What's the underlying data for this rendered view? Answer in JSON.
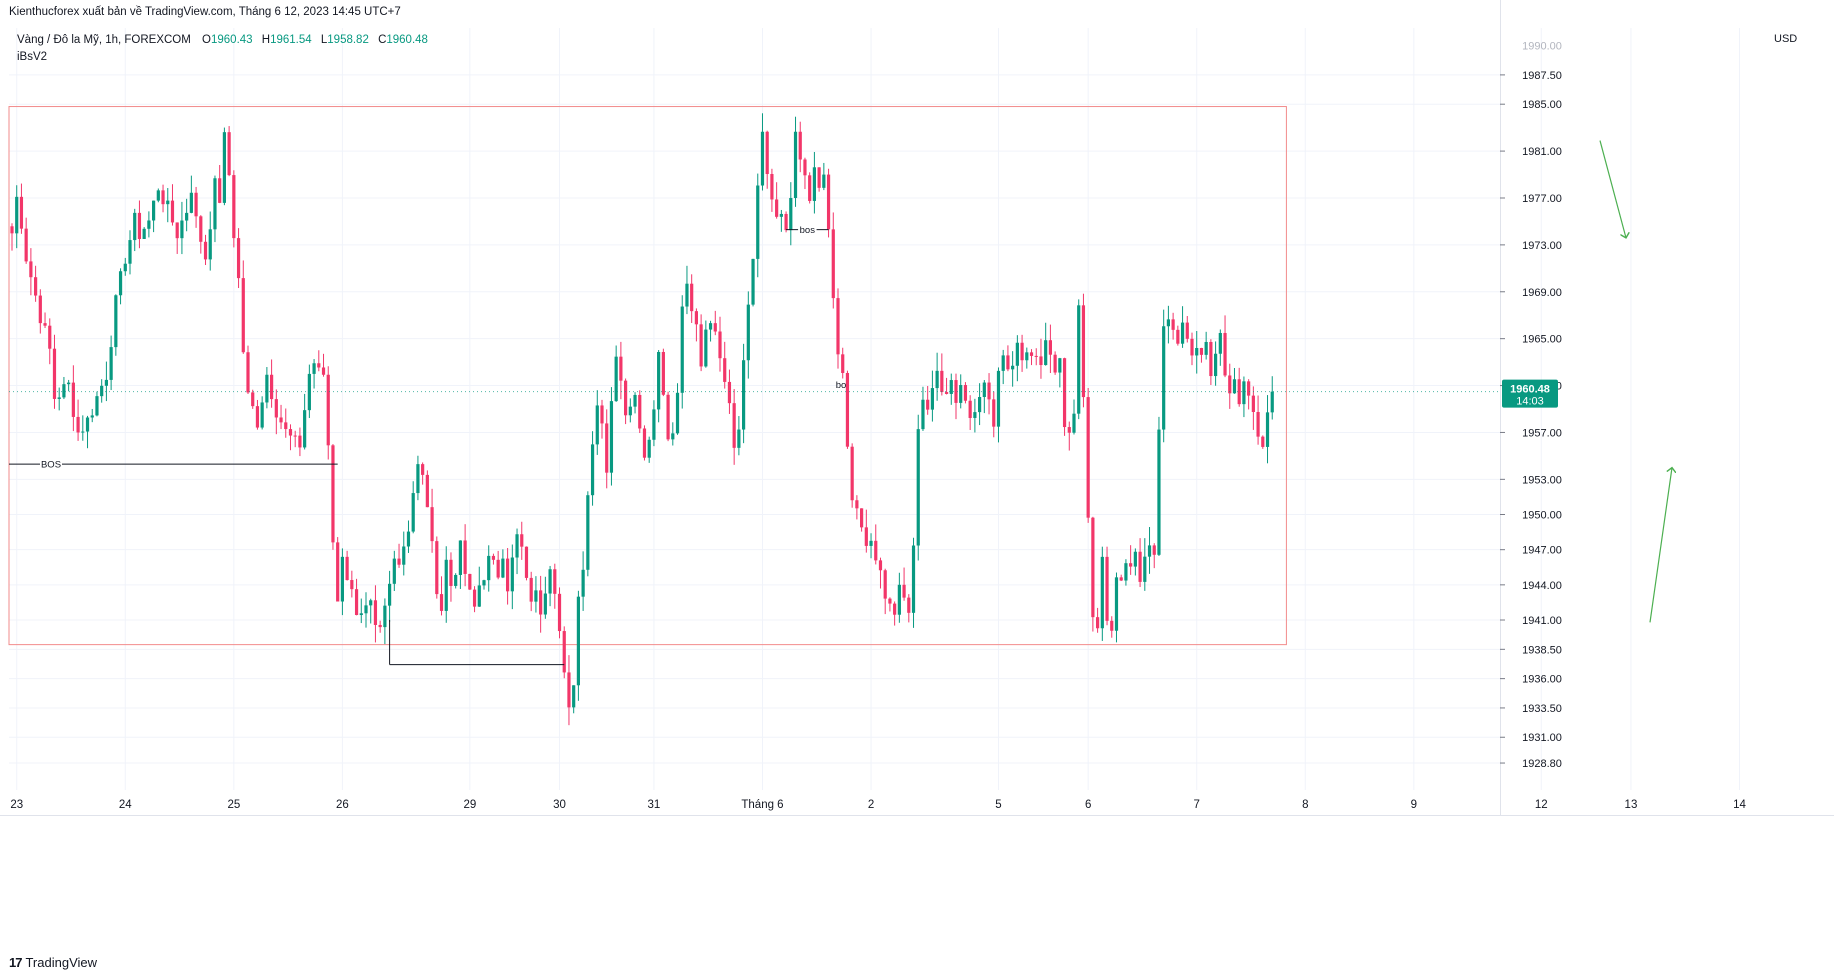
{
  "header": {
    "publish_text": "Kienthucforex xuất bản về TradingView.com, Tháng 6 12, 2023 14:45 UTC+7",
    "symbol_text": "Vàng / Đô la Mỹ, 1h, FOREXCOM",
    "ohlc": {
      "o_key": "O",
      "o": "1960.43",
      "h_key": "H",
      "h": "1961.54",
      "l_key": "L",
      "l": "1958.82",
      "c_key": "C",
      "c": "1960.48"
    },
    "indicator": "iBsV2"
  },
  "price_axis": {
    "currency": "USD",
    "top_partial_label": "1990.00",
    "current_price": "1960.48",
    "countdown": "14:03"
  },
  "footer": {
    "logo_text": "TradingView"
  },
  "colors": {
    "up": "#089981",
    "down": "#f23669",
    "zone": "#f28b8b",
    "arrow": "#4caf50",
    "grid": "#f0f3fa"
  },
  "chart_data": {
    "type": "candlestick",
    "title": "",
    "y_range": [
      1926.5,
      1991.5
    ],
    "y_ticks": [
      1928.8,
      1931.0,
      1933.5,
      1936.0,
      1938.5,
      1941.0,
      1944.0,
      1947.0,
      1950.0,
      1953.0,
      1957.0,
      1961.0,
      1965.0,
      1969.0,
      1973.0,
      1977.0,
      1981.0,
      1985.0,
      1987.5
    ],
    "y_tick_labels": [
      "1928.80",
      "1931.00",
      "1933.50",
      "1936.00",
      "1938.50",
      "1941.00",
      "1944.00",
      "1947.00",
      "1950.00",
      "1953.00",
      "1957.00",
      "1961.00",
      "1965.00",
      "1969.00",
      "1973.00",
      "1977.00",
      "1981.00",
      "1985.00",
      "1987.50"
    ],
    "x_labels": [
      {
        "label": "23",
        "bar": 1
      },
      {
        "label": "24",
        "bar": 24
      },
      {
        "label": "25",
        "bar": 47
      },
      {
        "label": "26",
        "bar": 70
      },
      {
        "label": "29",
        "bar": 97
      },
      {
        "label": "30",
        "bar": 116
      },
      {
        "label": "31",
        "bar": 136
      },
      {
        "label": "Tháng 6",
        "bar": 159
      },
      {
        "label": "2",
        "bar": 182
      },
      {
        "label": "5",
        "bar": 209
      },
      {
        "label": "6",
        "bar": 228
      },
      {
        "label": "7",
        "bar": 251
      },
      {
        "label": "8",
        "bar": 274
      },
      {
        "label": "9",
        "bar": 297
      },
      {
        "label": "12",
        "bar": 324
      },
      {
        "label": "13",
        "bar": 343
      },
      {
        "label": "14",
        "bar": 366
      }
    ],
    "key_points": [
      [
        0,
        1974
      ],
      [
        1,
        1977
      ],
      [
        2,
        1975
      ],
      [
        3,
        1972
      ],
      [
        6,
        1967
      ],
      [
        8,
        1964
      ],
      [
        9,
        1960
      ],
      [
        12,
        1961
      ],
      [
        14,
        1957
      ],
      [
        16,
        1958
      ],
      [
        18,
        1960
      ],
      [
        20,
        1962
      ],
      [
        22,
        1968
      ],
      [
        24,
        1972
      ],
      [
        26,
        1975
      ],
      [
        27,
        1974
      ],
      [
        29,
        1975
      ],
      [
        31,
        1978
      ],
      [
        33,
        1976
      ],
      [
        35,
        1974
      ],
      [
        37,
        1976
      ],
      [
        38,
        1978
      ],
      [
        39,
        1975
      ],
      [
        41,
        1972
      ],
      [
        42,
        1975
      ],
      [
        43,
        1978
      ],
      [
        44,
        1977
      ],
      [
        45,
        1982
      ],
      [
        46,
        1979
      ],
      [
        47,
        1974
      ],
      [
        48,
        1970
      ],
      [
        49,
        1964
      ],
      [
        50,
        1960
      ],
      [
        52,
        1958
      ],
      [
        54,
        1962
      ],
      [
        56,
        1959
      ],
      [
        58,
        1957
      ],
      [
        60,
        1956
      ],
      [
        61,
        1956
      ],
      [
        62,
        1959
      ],
      [
        63,
        1962
      ],
      [
        64,
        1963
      ],
      [
        65,
        1962
      ],
      [
        66,
        1962
      ],
      [
        67,
        1956
      ],
      [
        68,
        1948
      ],
      [
        69,
        1943
      ],
      [
        70,
        1946
      ],
      [
        72,
        1944
      ],
      [
        73,
        1941
      ],
      [
        74,
        1941
      ],
      [
        76,
        1942
      ],
      [
        77,
        1940
      ],
      [
        78,
        1940
      ],
      [
        79,
        1942
      ],
      [
        80,
        1944
      ],
      [
        81,
        1947
      ],
      [
        82,
        1946
      ],
      [
        84,
        1949
      ],
      [
        85,
        1952
      ],
      [
        86,
        1954
      ],
      [
        87,
        1953
      ],
      [
        88,
        1951
      ],
      [
        89,
        1947
      ],
      [
        90,
        1944
      ],
      [
        91,
        1942
      ],
      [
        92,
        1946
      ],
      [
        93,
        1944
      ],
      [
        95,
        1947
      ],
      [
        97,
        1943
      ],
      [
        98,
        1942
      ],
      [
        99,
        1944
      ],
      [
        101,
        1946
      ],
      [
        103,
        1945
      ],
      [
        104,
        1947
      ],
      [
        105,
        1944
      ],
      [
        106,
        1946
      ],
      [
        107,
        1948
      ],
      [
        108,
        1947
      ],
      [
        109,
        1944
      ],
      [
        110,
        1943
      ],
      [
        111,
        1943
      ],
      [
        112,
        1942
      ],
      [
        113,
        1944
      ],
      [
        114,
        1946
      ],
      [
        115,
        1944
      ],
      [
        116,
        1940
      ],
      [
        117,
        1936
      ],
      [
        118,
        1933
      ],
      [
        119,
        1936
      ],
      [
        120,
        1943
      ],
      [
        121,
        1946
      ],
      [
        122,
        1952
      ],
      [
        123,
        1956
      ],
      [
        124,
        1960
      ],
      [
        125,
        1958
      ],
      [
        126,
        1954
      ],
      [
        127,
        1960
      ],
      [
        128,
        1963
      ],
      [
        129,
        1962
      ],
      [
        130,
        1959
      ],
      [
        131,
        1960
      ],
      [
        132,
        1960
      ],
      [
        133,
        1958
      ],
      [
        134,
        1955
      ],
      [
        135,
        1957
      ],
      [
        136,
        1959
      ],
      [
        137,
        1964
      ],
      [
        138,
        1961
      ],
      [
        139,
        1956
      ],
      [
        140,
        1957
      ],
      [
        141,
        1960
      ],
      [
        142,
        1968
      ],
      [
        143,
        1969
      ],
      [
        144,
        1967
      ],
      [
        145,
        1966
      ],
      [
        146,
        1963
      ],
      [
        147,
        1966
      ],
      [
        148,
        1967
      ],
      [
        149,
        1965
      ],
      [
        150,
        1964
      ],
      [
        151,
        1962
      ],
      [
        152,
        1960
      ],
      [
        153,
        1956
      ],
      [
        154,
        1958
      ],
      [
        155,
        1963
      ],
      [
        156,
        1968
      ],
      [
        157,
        1972
      ],
      [
        158,
        1978
      ],
      [
        159,
        1982
      ],
      [
        160,
        1979
      ],
      [
        161,
        1977
      ],
      [
        162,
        1976
      ],
      [
        163,
        1975
      ],
      [
        164,
        1974
      ],
      [
        165,
        1977
      ],
      [
        166,
        1982
      ],
      [
        167,
        1980
      ],
      [
        168,
        1979
      ],
      [
        169,
        1976
      ],
      [
        170,
        1979
      ],
      [
        171,
        1978
      ],
      [
        172,
        1979
      ],
      [
        173,
        1974
      ],
      [
        174,
        1968
      ],
      [
        175,
        1963
      ],
      [
        176,
        1962
      ],
      [
        177,
        1955
      ],
      [
        178,
        1951
      ],
      [
        179,
        1950
      ],
      [
        180,
        1949
      ],
      [
        181,
        1948
      ],
      [
        182,
        1947
      ],
      [
        183,
        1946
      ],
      [
        184,
        1945
      ],
      [
        185,
        1943
      ],
      [
        186,
        1942
      ],
      [
        187,
        1941
      ],
      [
        188,
        1944
      ],
      [
        189,
        1943
      ],
      [
        190,
        1941
      ],
      [
        191,
        1947
      ],
      [
        192,
        1958
      ],
      [
        193,
        1960
      ],
      [
        194,
        1959
      ],
      [
        195,
        1960
      ],
      [
        196,
        1962
      ],
      [
        197,
        1961
      ],
      [
        198,
        1960
      ],
      [
        199,
        1962
      ],
      [
        200,
        1960
      ],
      [
        201,
        1961
      ],
      [
        202,
        1960
      ],
      [
        203,
        1959
      ],
      [
        204,
        1958
      ],
      [
        205,
        1960
      ],
      [
        206,
        1962
      ],
      [
        207,
        1960
      ],
      [
        208,
        1958
      ],
      [
        209,
        1962
      ],
      [
        210,
        1964
      ],
      [
        211,
        1962
      ],
      [
        212,
        1963
      ],
      [
        213,
        1964
      ],
      [
        214,
        1963
      ],
      [
        215,
        1964
      ],
      [
        216,
        1963
      ],
      [
        217,
        1964
      ],
      [
        218,
        1963
      ],
      [
        219,
        1965
      ],
      [
        220,
        1963
      ],
      [
        221,
        1962
      ],
      [
        222,
        1964
      ],
      [
        223,
        1958
      ],
      [
        224,
        1957
      ],
      [
        225,
        1959
      ],
      [
        226,
        1968
      ],
      [
        227,
        1960
      ],
      [
        228,
        1950
      ],
      [
        229,
        1942
      ],
      [
        230,
        1941
      ],
      [
        231,
        1946
      ],
      [
        232,
        1941
      ],
      [
        233,
        1940
      ],
      [
        234,
        1944
      ],
      [
        235,
        1945
      ],
      [
        236,
        1946
      ],
      [
        237,
        1946
      ],
      [
        238,
        1947
      ],
      [
        239,
        1945
      ],
      [
        240,
        1947
      ],
      [
        241,
        1947
      ],
      [
        242,
        1946
      ],
      [
        243,
        1958
      ],
      [
        244,
        1966
      ],
      [
        245,
        1967
      ],
      [
        246,
        1966
      ],
      [
        247,
        1965
      ],
      [
        248,
        1966
      ],
      [
        249,
        1965
      ],
      [
        250,
        1964
      ],
      [
        251,
        1964
      ],
      [
        252,
        1963
      ],
      [
        253,
        1964
      ],
      [
        254,
        1962
      ],
      [
        255,
        1963
      ],
      [
        256,
        1965
      ],
      [
        257,
        1962
      ],
      [
        258,
        1961
      ],
      [
        259,
        1962
      ],
      [
        260,
        1960
      ],
      [
        261,
        1961
      ],
      [
        262,
        1960
      ],
      [
        263,
        1958
      ],
      [
        264,
        1957
      ],
      [
        265,
        1956
      ],
      [
        266,
        1959
      ],
      [
        267,
        1960.48
      ]
    ],
    "zone": {
      "top": 1984.8,
      "bottom": 1938.9,
      "bar_start": 0,
      "bar_end": 270
    },
    "annotations": [
      {
        "text": "BOS",
        "price": 1954.3,
        "bar_start": 0,
        "bar_end": 69
      },
      {
        "text": "",
        "price": 1937.2,
        "bar_start": 80,
        "bar_end": 117
      },
      {
        "text": "bos",
        "price": 1974.3,
        "bar_start": 164,
        "bar_end": 173
      },
      {
        "text": "bo",
        "price": 1961.1,
        "bar_start": 175,
        "bar_end": 177
      }
    ]
  }
}
